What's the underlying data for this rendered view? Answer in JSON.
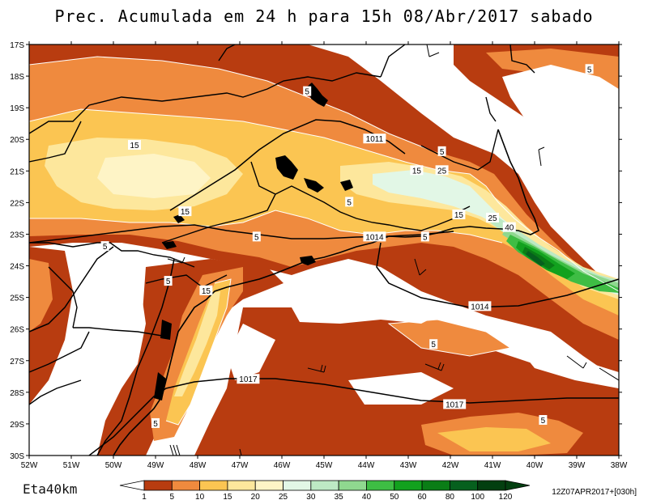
{
  "title": "Prec. Acumulada em 24 h para 15h 08/Abr/2017 sabado",
  "model_label": "Eta40km",
  "run_info": "12Z07APR2017+[030h]",
  "lat_ticks": [
    "17S",
    "18S",
    "19S",
    "20S",
    "21S",
    "22S",
    "23S",
    "24S",
    "25S",
    "26S",
    "27S",
    "28S",
    "29S",
    "30S"
  ],
  "lon_ticks": [
    "52W",
    "51W",
    "50W",
    "49W",
    "48W",
    "47W",
    "46W",
    "45W",
    "44W",
    "43W",
    "42W",
    "41W",
    "40W",
    "39W",
    "38W"
  ],
  "legend": {
    "levels": [
      "1",
      "5",
      "10",
      "15",
      "20",
      "25",
      "30",
      "35",
      "40",
      "50",
      "60",
      "80",
      "100",
      "120"
    ],
    "colors": [
      "#ffffff",
      "#b83c10",
      "#ef8a3e",
      "#fbc552",
      "#fde79c",
      "#fef4c6",
      "#e2f7e6",
      "#bde9c4",
      "#8fd88f",
      "#3ebd44",
      "#12a11e",
      "#0a7d16",
      "#06601e",
      "#033f10"
    ]
  },
  "precip_labels": [
    {
      "text": "5",
      "lon": -45.4,
      "lat": -18.5
    },
    {
      "text": "15",
      "lon": -49.5,
      "lat": -20.2
    },
    {
      "text": "1011",
      "lon": -43.8,
      "lat": -20.0
    },
    {
      "text": "5",
      "lon": -42.2,
      "lat": -20.4
    },
    {
      "text": "15",
      "lon": -42.8,
      "lat": -21.0
    },
    {
      "text": "25",
      "lon": -42.2,
      "lat": -21.0
    },
    {
      "text": "5",
      "lon": -44.4,
      "lat": -22.0
    },
    {
      "text": "15",
      "lon": -48.3,
      "lat": -22.3
    },
    {
      "text": "15",
      "lon": -41.8,
      "lat": -22.4
    },
    {
      "text": "25",
      "lon": -41.0,
      "lat": -22.5
    },
    {
      "text": "40",
      "lon": -40.6,
      "lat": -22.8
    },
    {
      "text": "5",
      "lon": -46.6,
      "lat": -23.1
    },
    {
      "text": "1014",
      "lon": -43.8,
      "lat": -23.1
    },
    {
      "text": "5",
      "lon": -42.6,
      "lat": -23.1
    },
    {
      "text": "5",
      "lon": -50.2,
      "lat": -23.4
    },
    {
      "text": "5",
      "lon": -48.7,
      "lat": -24.5
    },
    {
      "text": "15",
      "lon": -47.8,
      "lat": -24.8
    },
    {
      "text": "1014",
      "lon": -41.3,
      "lat": -25.3
    },
    {
      "text": "5",
      "lon": -42.4,
      "lat": -26.5
    },
    {
      "text": "1017",
      "lon": -46.8,
      "lat": -27.6
    },
    {
      "text": "1017",
      "lon": -41.9,
      "lat": -28.4
    },
    {
      "text": "5",
      "lon": -49.0,
      "lat": -29.0
    },
    {
      "text": "5",
      "lon": -39.8,
      "lat": -28.9
    },
    {
      "text": "5",
      "lon": -38.7,
      "lat": -17.8
    }
  ]
}
